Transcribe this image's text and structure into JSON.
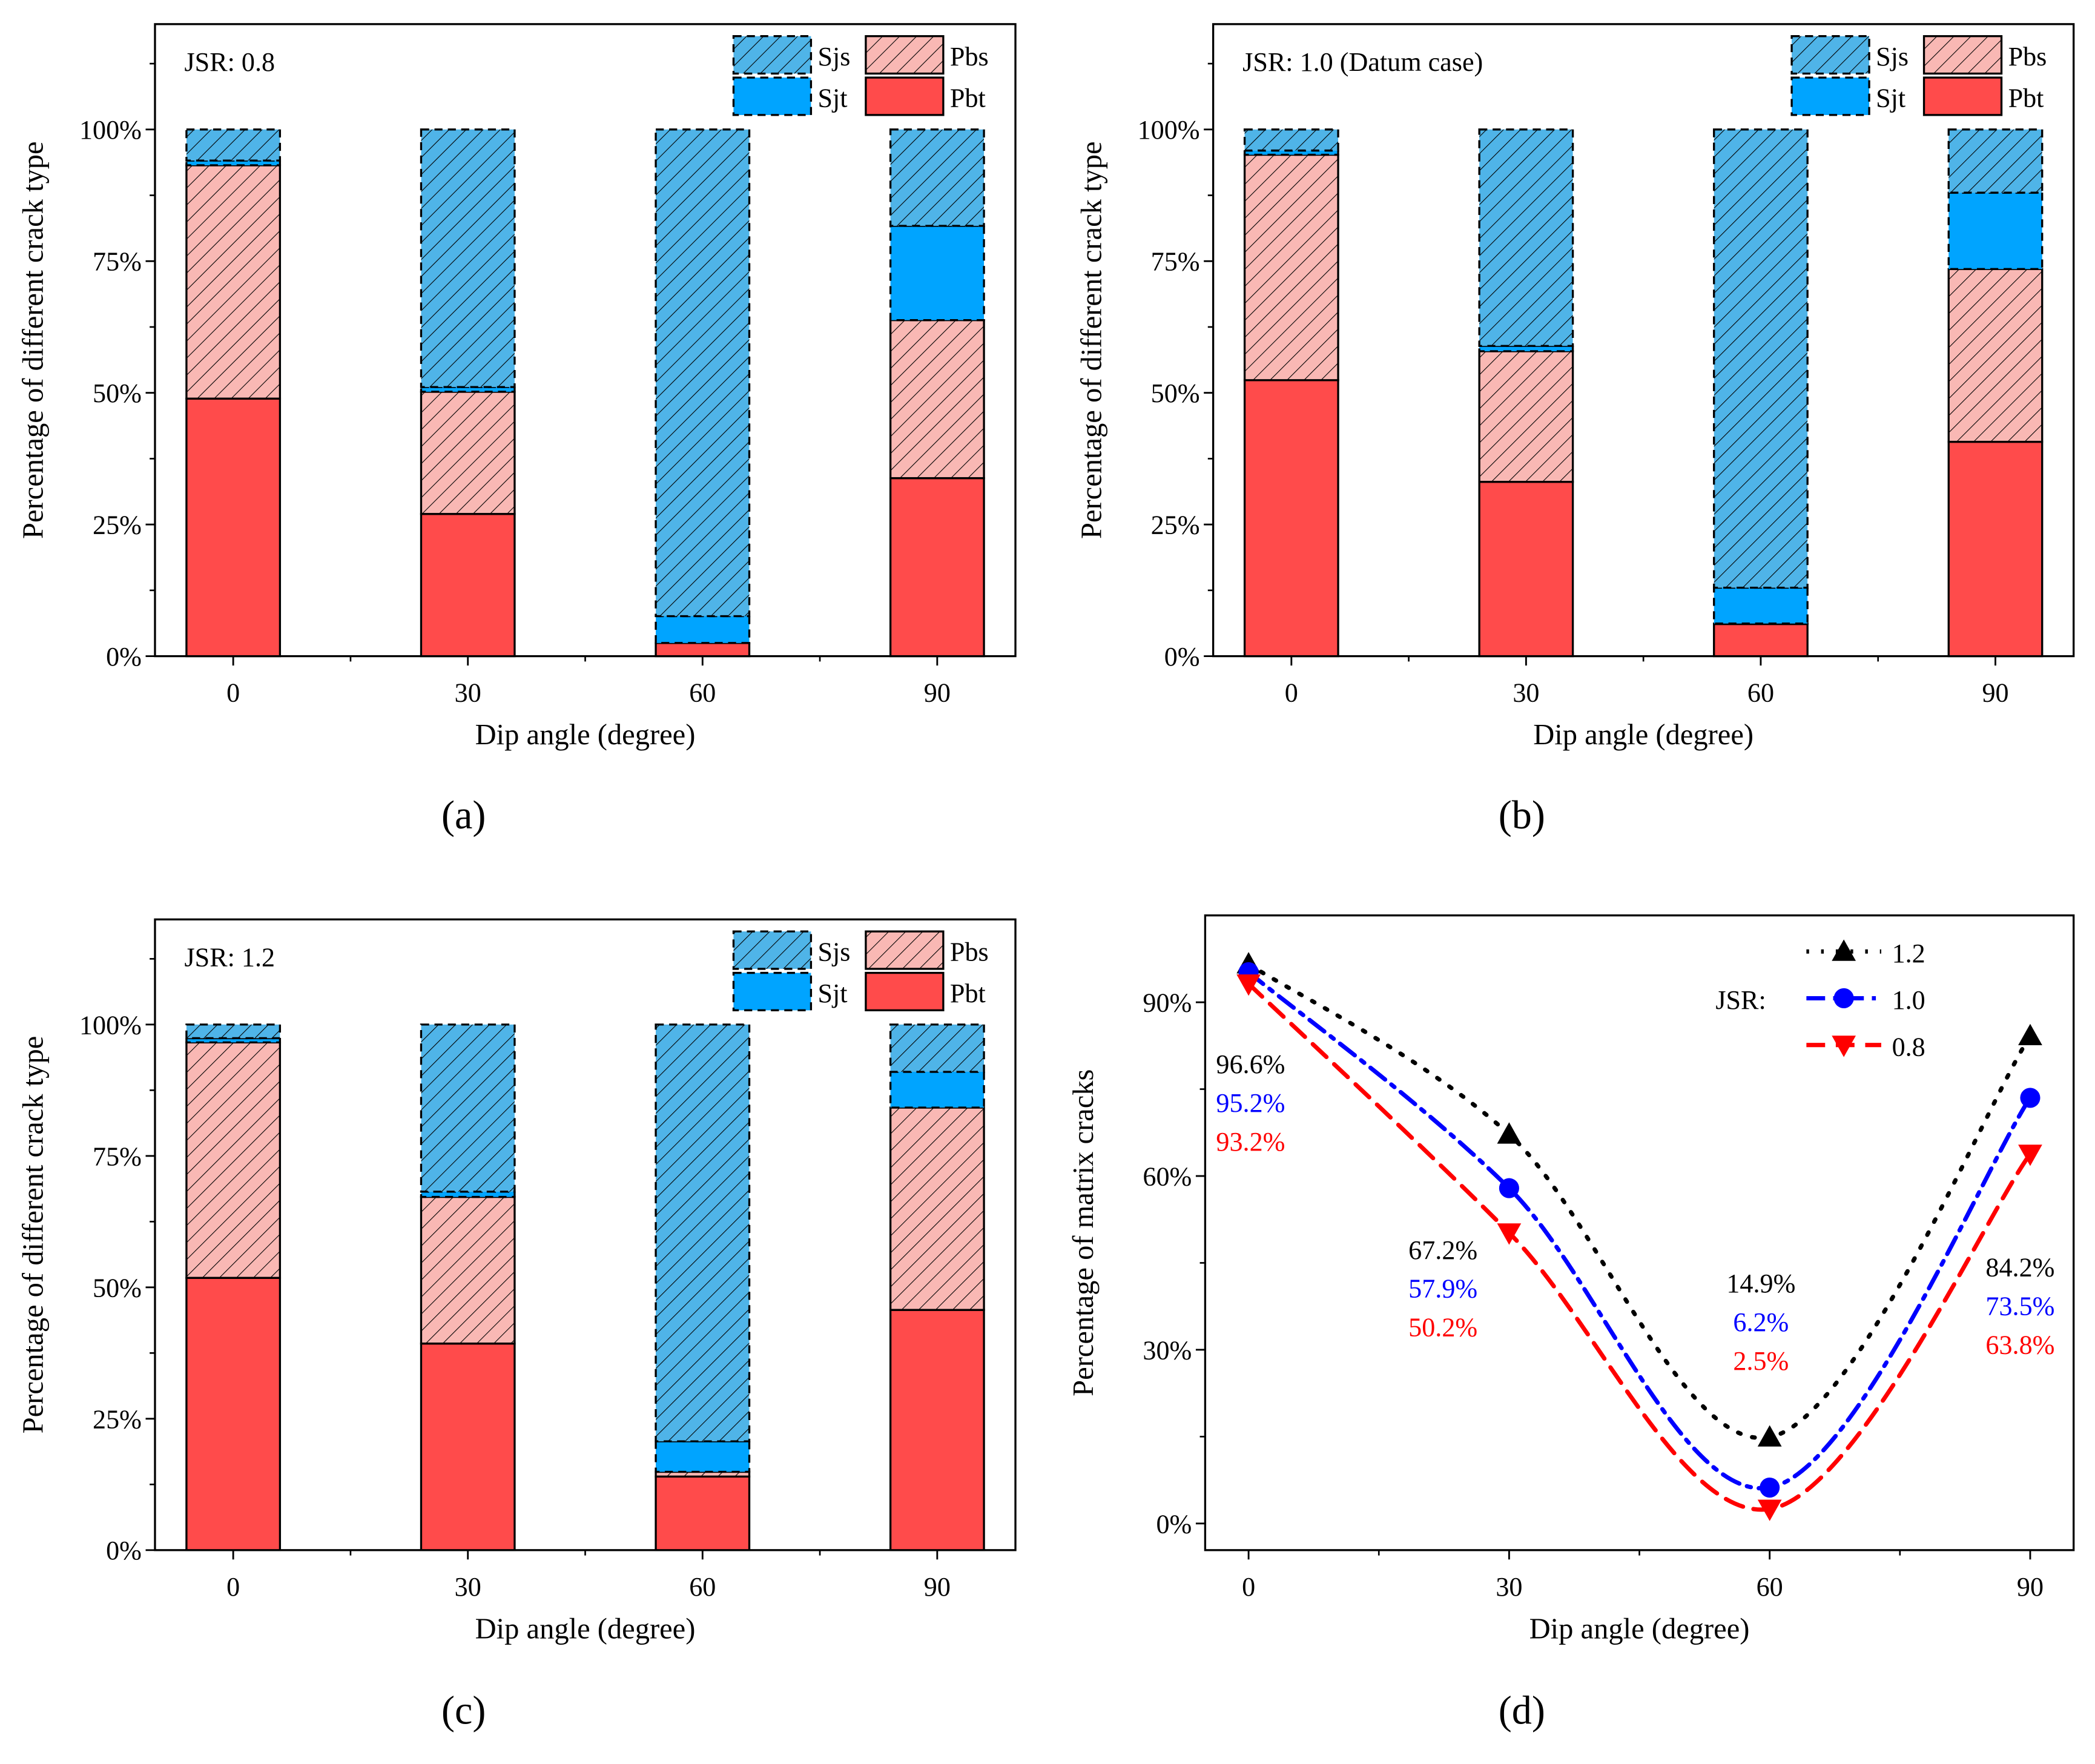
{
  "colors": {
    "Sjs": "#4fb4e8",
    "Sjt": "#00a4ff",
    "Pbs": "#f9b8b4",
    "Pbt": "#ff4b4b",
    "s12": "#000000",
    "s10": "#0000ff",
    "s08": "#ff0000"
  },
  "chart_data": [
    {
      "panel": "(a)",
      "type": "bar",
      "stacked": true,
      "annotation": "JSR: 0.8",
      "xlabel": "Dip angle (degree)",
      "ylabel": "Percentage of different crack type",
      "categories": [
        "0",
        "30",
        "60",
        "90"
      ],
      "x": [
        0,
        30,
        60,
        90
      ],
      "xlim": [
        -10,
        100
      ],
      "ylim": [
        0,
        120
      ],
      "yticks": [
        "0%",
        "25%",
        "50%",
        "75%",
        "100%"
      ],
      "ytick_values": [
        0,
        25,
        50,
        75,
        100
      ],
      "legend": [
        "Sjs",
        "Pbs",
        "Sjt",
        "Pbt"
      ],
      "series": [
        {
          "name": "Pbt",
          "values": [
            48.9,
            27.0,
            2.5,
            33.8
          ]
        },
        {
          "name": "Pbs",
          "values": [
            44.3,
            23.2,
            0.0,
            30.0
          ]
        },
        {
          "name": "Sjt",
          "values": [
            0.9,
            0.9,
            5.1,
            17.9
          ]
        },
        {
          "name": "Sjs",
          "values": [
            5.9,
            48.9,
            92.4,
            18.3
          ]
        }
      ]
    },
    {
      "panel": "(b)",
      "type": "bar",
      "stacked": true,
      "annotation": "JSR: 1.0  (Datum case)",
      "xlabel": "Dip angle (degree)",
      "ylabel": "Percentage of different crack type",
      "categories": [
        "0",
        "30",
        "60",
        "90"
      ],
      "x": [
        0,
        30,
        60,
        90
      ],
      "xlim": [
        -10,
        100
      ],
      "ylim": [
        0,
        120
      ],
      "yticks": [
        "0%",
        "25%",
        "50%",
        "75%",
        "100%"
      ],
      "ytick_values": [
        0,
        25,
        50,
        75,
        100
      ],
      "legend": [
        "Sjs",
        "Pbs",
        "Sjt",
        "Pbt"
      ],
      "series": [
        {
          "name": "Pbt",
          "values": [
            52.4,
            33.1,
            6.1,
            40.7
          ]
        },
        {
          "name": "Pbs",
          "values": [
            42.8,
            24.8,
            0.1,
            32.8
          ]
        },
        {
          "name": "Sjt",
          "values": [
            0.8,
            1.0,
            6.8,
            14.5
          ]
        },
        {
          "name": "Sjs",
          "values": [
            4.0,
            41.1,
            87.0,
            12.0
          ]
        }
      ]
    },
    {
      "panel": "(c)",
      "type": "bar",
      "stacked": true,
      "annotation": "JSR: 1.2",
      "xlabel": "Dip angle (degree)",
      "ylabel": "Percentage of different crack type",
      "categories": [
        "0",
        "30",
        "60",
        "90"
      ],
      "x": [
        0,
        30,
        60,
        90
      ],
      "xlim": [
        -10,
        100
      ],
      "ylim": [
        0,
        120
      ],
      "yticks": [
        "0%",
        "25%",
        "50%",
        "75%",
        "100%"
      ],
      "ytick_values": [
        0,
        25,
        50,
        75,
        100
      ],
      "legend": [
        "Sjs",
        "Pbs",
        "Sjt",
        "Pbt"
      ],
      "series": [
        {
          "name": "Pbt",
          "values": [
            51.8,
            39.3,
            14.0,
            45.7
          ]
        },
        {
          "name": "Pbs",
          "values": [
            44.8,
            27.9,
            0.9,
            38.5
          ]
        },
        {
          "name": "Sjt",
          "values": [
            0.8,
            1.0,
            5.8,
            6.8
          ]
        },
        {
          "name": "Sjs",
          "values": [
            2.6,
            31.8,
            79.3,
            9.0
          ]
        }
      ]
    },
    {
      "panel": "(d)",
      "type": "line",
      "xlabel": "Dip angle (degree)",
      "ylabel": "Percentage of matrix cracks",
      "categories": [
        "0",
        "30",
        "60",
        "90"
      ],
      "x": [
        0,
        30,
        60,
        90
      ],
      "xlim": [
        -5,
        95
      ],
      "ylim": [
        -4.6,
        105
      ],
      "yticks": [
        "0%",
        "30%",
        "60%",
        "90%"
      ],
      "ytick_values": [
        0,
        30,
        60,
        90
      ],
      "legend_title": "JSR:",
      "series": [
        {
          "name": "1.2",
          "values": [
            96.6,
            67.2,
            14.9,
            84.2
          ],
          "labels": [
            "96.6%",
            "67.2%",
            "14.9%",
            "84.2%"
          ],
          "marker": "triangle-up",
          "dash": "dotted"
        },
        {
          "name": "1.0",
          "values": [
            95.2,
            57.9,
            6.2,
            73.5
          ],
          "labels": [
            "95.2%",
            "57.9%",
            "6.2%",
            "73.5%"
          ],
          "marker": "circle",
          "dash": "dash-dot"
        },
        {
          "name": "0.8",
          "values": [
            93.2,
            50.2,
            2.5,
            63.8
          ],
          "labels": [
            "93.2%",
            "50.2%",
            "2.5%",
            "63.8%"
          ],
          "marker": "triangle-down",
          "dash": "dashed"
        }
      ]
    }
  ]
}
